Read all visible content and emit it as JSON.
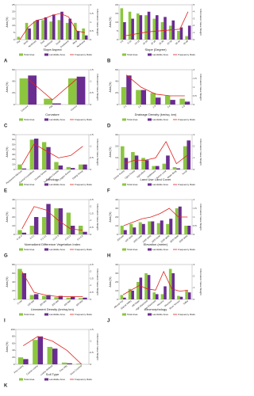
{
  "chart_data": [
    {
      "type": "bar",
      "panel_label": "A",
      "x_label": "Slope Aspect",
      "y_label": "Area (%)",
      "y2_label": "Information Value Weight",
      "categories": [
        "Flat",
        "North",
        "Northeast",
        "East",
        "Southeast",
        "South",
        "Southwest",
        "West",
        "Northwest"
      ],
      "series": [
        {
          "name": "Total Area",
          "color": "#8cc63f",
          "values": [
            2,
            12,
            13,
            14,
            13,
            14,
            12,
            12,
            8
          ]
        },
        {
          "name": "Landslide Area",
          "color": "#6a2c91",
          "values": [
            0,
            8,
            14,
            16,
            18,
            20,
            15,
            6,
            3
          ]
        },
        {
          "name": "Frequency Ratio",
          "color": "#e0201b",
          "axis": "y2",
          "values": [
            0,
            0.7,
            1.1,
            1.2,
            1.4,
            1.5,
            1.3,
            0.5,
            0.4
          ]
        }
      ],
      "ylim": [
        0,
        25
      ],
      "yticks": [
        0,
        5,
        10,
        15,
        20,
        25
      ],
      "y2lim": [
        0,
        2
      ],
      "y2ticks": [
        0,
        0.5,
        1,
        1.5,
        2
      ]
    },
    {
      "type": "bar",
      "panel_label": "B",
      "x_label": "Slope (Degree)",
      "y_label": "Area (%)",
      "y2_label": "Information Value Weight",
      "categories": [
        "0-5",
        "5-10",
        "10-15",
        "15-20",
        "20-25",
        "25-30",
        "30-35",
        "35-40",
        "40-85"
      ],
      "series": [
        {
          "name": "Total Area",
          "color": "#8cc63f",
          "values": [
            18,
            16,
            15,
            14,
            12,
            10,
            8,
            5,
            2
          ]
        },
        {
          "name": "Landslide Area",
          "color": "#6a2c91",
          "values": [
            10,
            12,
            14,
            16,
            14,
            13,
            11,
            7,
            8
          ]
        },
        {
          "name": "Frequency Ratio",
          "color": "#e0201b",
          "axis": "y2",
          "values": [
            0.5,
            0.7,
            0.9,
            1.1,
            1.2,
            1.3,
            1.4,
            1.5,
            4
          ]
        }
      ],
      "ylim": [
        0,
        20
      ],
      "yticks": [
        0,
        5,
        10,
        15,
        20
      ],
      "y2lim": [
        0,
        5
      ],
      "y2ticks": [
        0,
        1,
        2,
        3,
        4,
        5
      ]
    },
    {
      "type": "bar",
      "panel_label": "C",
      "x_label": "Curvature",
      "y_label": "Area (%)",
      "y2_label": "Information Value Weight",
      "categories": [
        "Concave",
        "Flat",
        "Convex"
      ],
      "series": [
        {
          "name": "Total Area",
          "color": "#8cc63f",
          "values": [
            45,
            10,
            45
          ]
        },
        {
          "name": "Landslide Area",
          "color": "#6a2c91",
          "values": [
            50,
            2,
            48
          ]
        },
        {
          "name": "Frequency Ratio",
          "color": "#e0201b",
          "axis": "y2",
          "values": [
            1.1,
            0.2,
            1.1
          ]
        }
      ],
      "ylim": [
        0,
        60
      ],
      "yticks": [
        0,
        20,
        40,
        60
      ],
      "y2lim": [
        0,
        1.5
      ],
      "y2ticks": [
        0,
        0.5,
        1,
        1.5
      ]
    },
    {
      "type": "bar",
      "panel_label": "D",
      "x_label": "Drainage Density (km/sq. km)",
      "y_label": "Area (%)",
      "y2_label": "Information Value Weight",
      "categories": [
        "0-1",
        "1-2",
        "2-3",
        "3-4",
        "4-5"
      ],
      "series": [
        {
          "name": "Total Area",
          "color": "#8cc63f",
          "values": [
            30,
            25,
            20,
            15,
            10
          ]
        },
        {
          "name": "Landslide Area",
          "color": "#6a2c91",
          "values": [
            50,
            25,
            12,
            8,
            5
          ]
        },
        {
          "name": "Frequency Ratio",
          "color": "#e0201b",
          "axis": "y2",
          "values": [
            1.7,
            1,
            0.6,
            0.5,
            0.5
          ]
        }
      ],
      "ylim": [
        0,
        60
      ],
      "yticks": [
        0,
        20,
        40,
        60
      ],
      "y2lim": [
        0,
        2
      ],
      "y2ticks": [
        0,
        0.5,
        1,
        1.5,
        2
      ]
    },
    {
      "type": "bar",
      "panel_label": "E",
      "x_label": "Lithology",
      "y_label": "Area (%)",
      "y2_label": "Information Value Weight",
      "categories": [
        "Pleistocene Alluvium",
        "Central Crystallines",
        "Granite Gneiss",
        "Tourmaline Granite",
        "Lingtse Gneiss",
        "Daling Group"
      ],
      "series": [
        {
          "name": "Total Area",
          "color": "#8cc63f",
          "values": [
            10,
            60,
            55,
            15,
            5,
            10
          ]
        },
        {
          "name": "Landslide Area",
          "color": "#6a2c91",
          "values": [
            2,
            62,
            45,
            8,
            3,
            10
          ]
        },
        {
          "name": "Frequency Ratio",
          "color": "#e0201b",
          "axis": "y2",
          "values": [
            0.2,
            1.1,
            0.8,
            0.5,
            0.6,
            1
          ]
        }
      ],
      "ylim": [
        0,
        70
      ],
      "yticks": [
        0,
        10,
        20,
        30,
        40,
        50,
        60,
        70
      ],
      "y2lim": [
        0,
        1.5
      ],
      "y2ticks": [
        0,
        0.5,
        1,
        1.5
      ]
    },
    {
      "type": "bar",
      "panel_label": "F",
      "x_label": "Land Use Land Cover",
      "y_label": "Area (%)",
      "y2_label": "Information Value Weight",
      "categories": [
        "Dense Forest",
        "Open Forest",
        "Agriculture",
        "Settlement",
        "Barren Land",
        "Water Body",
        "Scrub"
      ],
      "series": [
        {
          "name": "Total Area",
          "color": "#8cc63f",
          "values": [
            20,
            15,
            10,
            3,
            5,
            2,
            20
          ]
        },
        {
          "name": "Landslide Area",
          "color": "#6a2c91",
          "values": [
            10,
            12,
            8,
            3,
            12,
            1,
            25
          ]
        },
        {
          "name": "Frequency Ratio",
          "color": "#e0201b",
          "axis": "y2",
          "values": [
            0.5,
            0.8,
            0.8,
            1,
            2.4,
            0.5,
            1.2
          ]
        }
      ],
      "ylim": [
        0,
        30
      ],
      "yticks": [
        0,
        10,
        20,
        30
      ],
      "y2lim": [
        0,
        3
      ],
      "y2ticks": [
        0,
        1,
        2,
        3
      ]
    },
    {
      "type": "bar",
      "panel_label": "G",
      "x_label": "Normalized Difference Vegetation Index",
      "y_label": "Area (%)",
      "y2_label": "Information Value Weight",
      "categories": [
        "-0.15-0",
        "0-0.1",
        "0.1-0.2",
        "0.2-0.3",
        "0.3-0.4",
        "0.4-0.5"
      ],
      "series": [
        {
          "name": "Total Area",
          "color": "#8cc63f",
          "values": [
            5,
            10,
            20,
            30,
            25,
            10
          ]
        },
        {
          "name": "Landslide Area",
          "color": "#6a2c91",
          "values": [
            2,
            20,
            35,
            30,
            10,
            3
          ]
        },
        {
          "name": "Frequency Ratio",
          "color": "#e0201b",
          "axis": "y2",
          "values": [
            0.4,
            2,
            1.75,
            1,
            0.4,
            0.3
          ]
        }
      ],
      "ylim": [
        0,
        40
      ],
      "yticks": [
        0,
        10,
        20,
        30,
        40
      ],
      "y2lim": [
        0,
        2.5
      ],
      "y2ticks": [
        0,
        0.5,
        1,
        1.5,
        2,
        2.5
      ]
    },
    {
      "type": "bar",
      "panel_label": "H",
      "x_label": "Elevation (meter)",
      "y_label": "Area (%)",
      "y2_label": "Information Value Weight",
      "categories": [
        "200-600",
        "600-1000",
        "1000-1400",
        "1400-1800",
        "1800-2200",
        "2200-2600",
        "2600-3000",
        "3000-3400"
      ],
      "series": [
        {
          "name": "Total Area",
          "color": "#8cc63f",
          "values": [
            10,
            12,
            14,
            15,
            13,
            12,
            30,
            10
          ]
        },
        {
          "name": "Landslide Area",
          "color": "#6a2c91",
          "values": [
            5,
            8,
            12,
            15,
            16,
            18,
            32,
            10
          ]
        },
        {
          "name": "Frequency Ratio",
          "color": "#e0201b",
          "axis": "y2",
          "values": [
            0.5,
            0.7,
            0.9,
            1,
            1.2,
            1.5,
            1,
            1
          ]
        }
      ],
      "ylim": [
        0,
        40
      ],
      "yticks": [
        0,
        10,
        20,
        30,
        40
      ],
      "y2lim": [
        0,
        2
      ],
      "y2ticks": [
        0,
        0.5,
        1,
        1.5,
        2
      ]
    },
    {
      "type": "bar",
      "panel_label": "I",
      "x_label": "Lineament Density (km/sq.km)",
      "y_label": "Area (%)",
      "y2_label": "Information Value Weight",
      "categories": [
        "0-100",
        "100-200",
        "200-300",
        "300-400",
        "400-500",
        "500-600"
      ],
      "series": [
        {
          "name": "Total Area",
          "color": "#8cc63f",
          "values": [
            70,
            10,
            8,
            5,
            4,
            3
          ]
        },
        {
          "name": "Landslide Area",
          "color": "#6a2c91",
          "values": [
            60,
            12,
            10,
            8,
            6,
            4
          ]
        },
        {
          "name": "Frequency Ratio",
          "color": "#e0201b",
          "axis": "y2",
          "values": [
            2,
            0.5,
            0.3,
            0.2,
            0.2,
            0.2
          ]
        }
      ],
      "ylim": [
        0,
        80
      ],
      "yticks": [
        0,
        20,
        40,
        60,
        80
      ],
      "y2lim": [
        0,
        2.5
      ],
      "y2ticks": [
        0,
        0.5,
        1,
        1.5,
        2,
        2.5
      ]
    },
    {
      "type": "bar",
      "panel_label": "J",
      "x_label": "Geomorphology",
      "y_label": "Area (%)",
      "y2_label": "Information Value Weight",
      "categories": [
        "Alluvial Fan",
        "Glacial Valley",
        "Hill Slope",
        "High Dissected",
        "Low Dissected",
        "Moraine",
        "Mountain",
        "River Terrace",
        "Valley"
      ],
      "series": [
        {
          "name": "Total Area",
          "color": "#8cc63f",
          "values": [
            5,
            12,
            20,
            30,
            8,
            6,
            35,
            4,
            10
          ]
        },
        {
          "name": "Landslide Area",
          "color": "#6a2c91",
          "values": [
            2,
            10,
            25,
            28,
            6,
            15,
            30,
            3,
            8
          ]
        },
        {
          "name": "Frequency Ratio",
          "color": "#e0201b",
          "axis": "y2",
          "values": [
            0.4,
            0.8,
            1.2,
            0.9,
            0.8,
            2.4,
            0.9,
            0.7,
            0.8
          ]
        }
      ],
      "ylim": [
        0,
        40
      ],
      "yticks": [
        0,
        10,
        20,
        30,
        40
      ],
      "y2lim": [
        0,
        3
      ],
      "y2ticks": [
        0,
        1,
        2,
        3
      ]
    },
    {
      "type": "bar",
      "panel_label": "K",
      "x_label": "Soil Type",
      "y_label": "Area (%)",
      "y2_label": "Information Value Weight",
      "categories": [
        "Fine Loamy",
        "Coarse Loamy",
        "Loamy Skeletal",
        "Fine Silty",
        "Snow Covered"
      ],
      "series": [
        {
          "name": "Total Area",
          "color": "#8cc63f",
          "values": [
            20,
            70,
            50,
            5,
            2
          ]
        },
        {
          "name": "Landslide Area",
          "color": "#6a2c91",
          "values": [
            15,
            80,
            45,
            3,
            0
          ]
        },
        {
          "name": "Frequency Ratio",
          "color": "#e0201b",
          "axis": "y2",
          "values": [
            0.8,
            1.2,
            1,
            0.6,
            0
          ]
        }
      ],
      "ylim": [
        0,
        100
      ],
      "yticks": [
        0,
        20,
        40,
        60,
        80,
        100
      ],
      "y2lim": [
        0,
        1.5
      ],
      "y2ticks": [
        0,
        0.5,
        1,
        1.5
      ]
    }
  ]
}
